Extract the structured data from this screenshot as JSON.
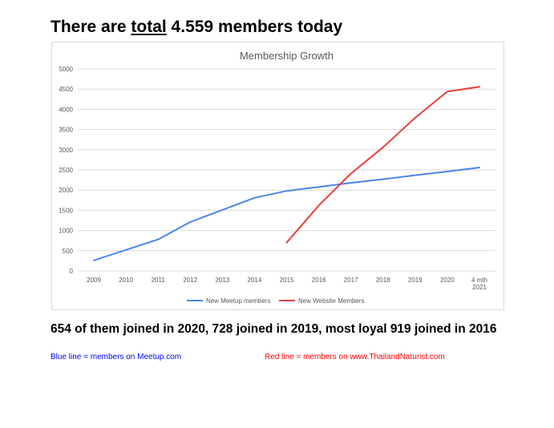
{
  "headline": {
    "prefix": "There are ",
    "underlined": "total",
    "suffix": " 4.559 members today"
  },
  "chart_data": {
    "type": "line",
    "title": "Membership Growth",
    "categories": [
      "2009",
      "2010",
      "2011",
      "2012",
      "2013",
      "2014",
      "2015",
      "2016",
      "2017",
      "2018",
      "2019",
      "2020",
      "4 mth 2021"
    ],
    "yticks": [
      "0",
      "500",
      "1000",
      "1500",
      "2000",
      "2500",
      "3000",
      "3500",
      "4000",
      "4500",
      "5000"
    ],
    "ylim": [
      0,
      5000
    ],
    "grid": true,
    "legend_position": "bottom",
    "series": [
      {
        "name": "New Meetup members",
        "color": "#4a86e8",
        "values": [
          260,
          520,
          780,
          1210,
          1510,
          1810,
          1980,
          2080,
          2180,
          2270,
          2370,
          2460,
          2560
        ]
      },
      {
        "name": "New Website Members",
        "color": "#e8413a",
        "values": [
          null,
          null,
          null,
          null,
          null,
          null,
          700,
          1620,
          2410,
          3060,
          3790,
          4440,
          4559
        ]
      }
    ]
  },
  "subline": "654 of them joined in 2020, 728 joined in 2019, most loyal 919 joined in 2016",
  "notes": {
    "blue": "Blue line = members on Meetup.com",
    "red": "Red line = members on www.ThailandNaturist.com"
  },
  "colors": {
    "blue_note": "#0000ff",
    "red_note": "#ff0000",
    "grid": "#d9d9d9",
    "axis_text": "#595959"
  }
}
